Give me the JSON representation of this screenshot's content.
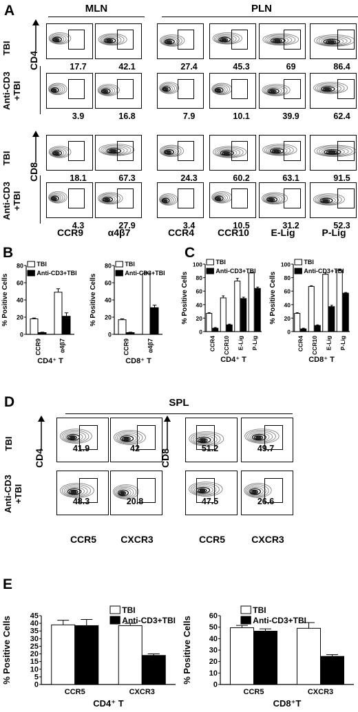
{
  "panels": {
    "A": "A",
    "B": "B",
    "C": "C",
    "D": "D",
    "E": "E"
  },
  "panelA": {
    "groups": [
      "MLN",
      "PLN"
    ],
    "row_labels": [
      "TBI",
      "Anti-CD3\n+TBI",
      "TBI",
      "Anti-CD3\n+TBI"
    ],
    "axis_labels": [
      "CD4",
      "CD8"
    ],
    "col_labels": [
      "CCR9",
      "α4β7",
      "CCR4",
      "CCR10",
      "E-Lig",
      "P-Lig"
    ],
    "values": [
      [
        "17.7",
        "42.1",
        "27.4",
        "45.3",
        "69",
        "86.4"
      ],
      [
        "3.9",
        "16.8",
        "7.9",
        "10.1",
        "39.9",
        "62.4"
      ],
      [
        "18.1",
        "67.3",
        "24.3",
        "60.2",
        "63.1",
        "91.5"
      ],
      [
        "4.3",
        "27.9",
        "3.4",
        "10.5",
        "31.2",
        "52.3"
      ]
    ]
  },
  "panelD": {
    "group": "SPL",
    "row_labels": [
      "TBI",
      "Anti-CD3\n+TBI"
    ],
    "axis_labels": [
      "CD4",
      "CD8"
    ],
    "col_labels": [
      "CCR5",
      "CXCR3",
      "CCR5",
      "CXCR3"
    ],
    "values": [
      [
        "41.9",
        "42",
        "51.2",
        "49.7"
      ],
      [
        "48.3",
        "20.8",
        "47.5",
        "26.6"
      ]
    ]
  },
  "colors": {
    "tbi": "#ffffff",
    "anti": "#000000",
    "stroke": "#000000"
  },
  "chart_data": [
    {
      "type": "bar",
      "panel": "B",
      "title": "CD4⁺ T",
      "ylabel": "% Positive Cells",
      "ylim": [
        0,
        80
      ],
      "yticks": [
        0,
        20,
        40,
        60,
        80
      ],
      "categories": [
        "CCR9",
        "α4β7"
      ],
      "legend": "top-left",
      "series": [
        {
          "name": "TBI",
          "values": [
            18,
            49
          ],
          "errors": [
            1,
            4
          ]
        },
        {
          "name": "Anti-CD3+TBI",
          "values": [
            2,
            21
          ],
          "errors": [
            0.5,
            4
          ]
        }
      ]
    },
    {
      "type": "bar",
      "panel": "B",
      "title": "CD8⁺ T",
      "ylabel": "% Positive Cells",
      "ylim": [
        0,
        80
      ],
      "yticks": [
        0,
        20,
        40,
        60,
        80
      ],
      "categories": [
        "CCR9",
        "α4β7"
      ],
      "legend": "top-left",
      "series": [
        {
          "name": "TBI",
          "values": [
            17,
            71
          ],
          "errors": [
            1,
            1
          ]
        },
        {
          "name": "Anti-CD3+TBI",
          "values": [
            2,
            31
          ],
          "errors": [
            0.5,
            3
          ]
        }
      ]
    },
    {
      "type": "bar",
      "panel": "C",
      "title": "CD4⁺ T",
      "ylabel": "% Positive Cells",
      "ylim": [
        0,
        100
      ],
      "yticks": [
        0,
        20,
        40,
        60,
        80,
        100
      ],
      "categories": [
        "CCR4",
        "CCR10",
        "E-Lig",
        "P-Lig"
      ],
      "legend": "top-left",
      "series": [
        {
          "name": "TBI",
          "values": [
            27,
            50,
            75,
            87
          ],
          "errors": [
            1,
            3,
            4,
            1
          ]
        },
        {
          "name": "Anti-CD3+TBI",
          "values": [
            5,
            10,
            49,
            64
          ],
          "errors": [
            1,
            1,
            2,
            2
          ]
        }
      ]
    },
    {
      "type": "bar",
      "panel": "C",
      "title": "CD8⁺ T",
      "ylabel": "% Positive Cells",
      "ylim": [
        0,
        100
      ],
      "yticks": [
        0,
        20,
        40,
        60,
        80,
        100
      ],
      "categories": [
        "CCR4",
        "CCR10",
        "E-Lig",
        "P-Lig"
      ],
      "legend": "top-left",
      "series": [
        {
          "name": "TBI",
          "values": [
            27,
            67,
            85,
            91
          ],
          "errors": [
            1,
            1,
            2,
            1
          ]
        },
        {
          "name": "Anti-CD3+TBI",
          "values": [
            4,
            9,
            37,
            57
          ],
          "errors": [
            1,
            1,
            2,
            1
          ]
        }
      ]
    },
    {
      "type": "bar",
      "panel": "E",
      "title": "CD4⁺ T",
      "ylabel": "% Positive Cells",
      "ylim": [
        0,
        45
      ],
      "yticks": [
        0,
        5,
        10,
        15,
        20,
        25,
        30,
        35,
        40,
        45
      ],
      "categories": [
        "CCR5",
        "CXCR3"
      ],
      "legend": "top-right",
      "series": [
        {
          "name": "TBI",
          "values": [
            39,
            38.5
          ],
          "errors": [
            3,
            1.5
          ]
        },
        {
          "name": "Anti-CD3+TBI",
          "values": [
            38.5,
            19
          ],
          "errors": [
            4,
            1
          ]
        }
      ]
    },
    {
      "type": "bar",
      "panel": "E",
      "title": "CD8⁺T",
      "ylabel": "% Positive Cells",
      "ylim": [
        0,
        60
      ],
      "yticks": [
        0,
        10,
        20,
        30,
        40,
        50,
        60
      ],
      "categories": [
        "CCR5",
        "CXCR3"
      ],
      "legend": "top-right",
      "series": [
        {
          "name": "TBI",
          "values": [
            49.5,
            49
          ],
          "errors": [
            2,
            5
          ]
        },
        {
          "name": "Anti-CD3+TBI",
          "values": [
            46.5,
            24.5
          ],
          "errors": [
            2,
            1.5
          ]
        }
      ]
    }
  ]
}
